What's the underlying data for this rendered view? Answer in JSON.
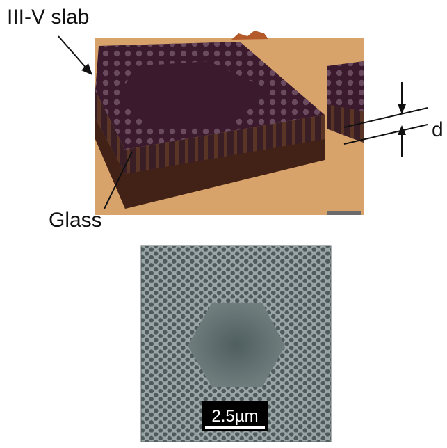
{
  "labels": {
    "slab": "III-V slab",
    "glass": "Glass",
    "thickness": "d"
  },
  "sem": {
    "scale_bar": "2.5µm"
  },
  "colors": {
    "background": "#ffffff",
    "substrate": "#d7a36b",
    "slab_top": "#3b1a2e",
    "slab_side": "#4a2818",
    "hole": "#6a4a5f",
    "sem_bg": "#9aa6a6",
    "sem_hole": "#4e5a5c",
    "ink": "#111111"
  }
}
